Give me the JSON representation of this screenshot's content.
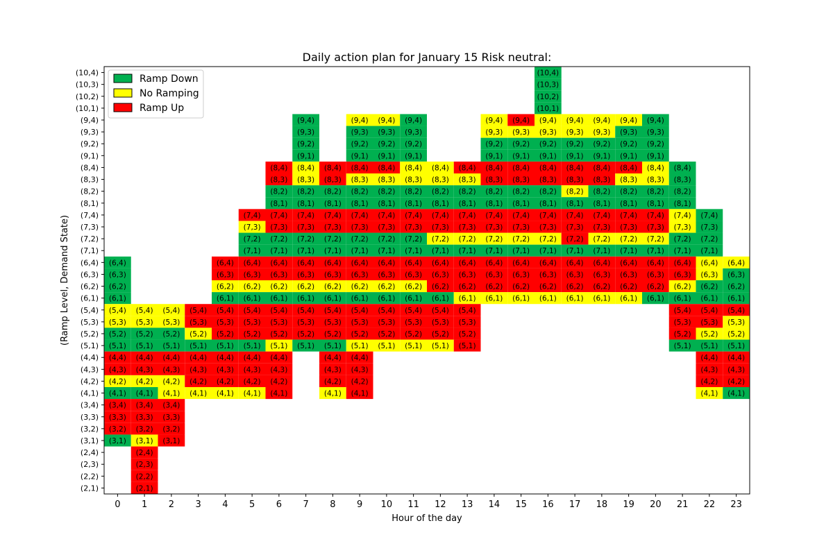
{
  "chart_data": {
    "type": "heatmap",
    "title": "Daily action plan for January 15 Risk neutral:",
    "xlabel": "Hour of the day",
    "ylabel": "(Ramp Level, Demand State)",
    "x_ticks": [
      "0",
      "1",
      "2",
      "3",
      "4",
      "5",
      "6",
      "7",
      "8",
      "9",
      "10",
      "11",
      "12",
      "13",
      "14",
      "15",
      "16",
      "17",
      "18",
      "19",
      "20",
      "21",
      "22",
      "23"
    ],
    "y_categories": [
      "(2,1)",
      "(2,2)",
      "(2,3)",
      "(2,4)",
      "(3,1)",
      "(3,2)",
      "(3,3)",
      "(3,4)",
      "(4,1)",
      "(4,2)",
      "(4,3)",
      "(4,4)",
      "(5,1)",
      "(5,2)",
      "(5,3)",
      "(5,4)",
      "(6,1)",
      "(6,2)",
      "(6,3)",
      "(6,4)",
      "(7,1)",
      "(7,2)",
      "(7,3)",
      "(7,4)",
      "(8,1)",
      "(8,2)",
      "(8,3)",
      "(8,4)",
      "(9,1)",
      "(9,2)",
      "(9,3)",
      "(9,4)",
      "(10,1)",
      "(10,2)",
      "(10,3)",
      "(10,4)"
    ],
    "colors": {
      "D": "#00b050",
      "N": "#ffff00",
      "U": "#ff0000"
    },
    "legend": {
      "position": "top-left",
      "entries": [
        {
          "key": "D",
          "label": "Ramp Down"
        },
        {
          "key": "N",
          "label": "No Ramping"
        },
        {
          "key": "U",
          "label": "Ramp Up"
        }
      ]
    },
    "cell_codes": "D=Ramp Down, N=No Ramping, U=Ramp Up",
    "columns": [
      {
        "hour": 0,
        "cells": {
          "(6,4)": "D",
          "(6,3)": "D",
          "(6,2)": "D",
          "(6,1)": "D",
          "(5,4)": "N",
          "(5,3)": "N",
          "(5,2)": "D",
          "(5,1)": "D",
          "(4,4)": "U",
          "(4,3)": "U",
          "(4,2)": "N",
          "(4,1)": "D",
          "(3,4)": "U",
          "(3,3)": "U",
          "(3,2)": "U",
          "(3,1)": "D"
        }
      },
      {
        "hour": 1,
        "cells": {
          "(5,4)": "N",
          "(5,3)": "N",
          "(5,2)": "D",
          "(5,1)": "D",
          "(4,4)": "U",
          "(4,3)": "U",
          "(4,2)": "N",
          "(4,1)": "D",
          "(3,4)": "U",
          "(3,3)": "U",
          "(3,2)": "U",
          "(3,1)": "N",
          "(2,4)": "U",
          "(2,3)": "U",
          "(2,2)": "U",
          "(2,1)": "U"
        }
      },
      {
        "hour": 2,
        "cells": {
          "(5,4)": "N",
          "(5,3)": "N",
          "(5,2)": "D",
          "(5,1)": "D",
          "(4,4)": "U",
          "(4,3)": "U",
          "(4,2)": "N",
          "(4,1)": "N",
          "(3,4)": "U",
          "(3,3)": "U",
          "(3,2)": "U",
          "(3,1)": "U"
        }
      },
      {
        "hour": 3,
        "cells": {
          "(5,4)": "U",
          "(5,3)": "U",
          "(5,2)": "N",
          "(5,1)": "D",
          "(4,4)": "U",
          "(4,3)": "U",
          "(4,2)": "U",
          "(4,1)": "N"
        }
      },
      {
        "hour": 4,
        "cells": {
          "(6,4)": "U",
          "(6,3)": "U",
          "(6,2)": "N",
          "(6,1)": "D",
          "(5,4)": "U",
          "(5,3)": "U",
          "(5,2)": "U",
          "(5,1)": "D",
          "(4,4)": "U",
          "(4,3)": "U",
          "(4,2)": "U",
          "(4,1)": "N"
        }
      },
      {
        "hour": 5,
        "cells": {
          "(7,4)": "U",
          "(7,3)": "N",
          "(7,2)": "D",
          "(7,1)": "D",
          "(6,4)": "U",
          "(6,3)": "U",
          "(6,2)": "N",
          "(6,1)": "D",
          "(5,4)": "U",
          "(5,3)": "U",
          "(5,2)": "U",
          "(5,1)": "D",
          "(4,4)": "U",
          "(4,3)": "U",
          "(4,2)": "U",
          "(4,1)": "N"
        }
      },
      {
        "hour": 6,
        "cells": {
          "(8,4)": "U",
          "(8,3)": "U",
          "(8,2)": "D",
          "(8,1)": "D",
          "(7,4)": "U",
          "(7,3)": "U",
          "(7,2)": "D",
          "(7,1)": "D",
          "(6,4)": "U",
          "(6,3)": "U",
          "(6,2)": "N",
          "(6,1)": "D",
          "(5,4)": "U",
          "(5,3)": "U",
          "(5,2)": "U",
          "(5,1)": "N",
          "(4,4)": "U",
          "(4,3)": "U",
          "(4,2)": "U",
          "(4,1)": "U"
        }
      },
      {
        "hour": 7,
        "cells": {
          "(9,4)": "D",
          "(9,3)": "D",
          "(9,2)": "D",
          "(9,1)": "D",
          "(8,4)": "N",
          "(8,3)": "N",
          "(8,2)": "D",
          "(8,1)": "D",
          "(7,4)": "U",
          "(7,3)": "U",
          "(7,2)": "D",
          "(7,1)": "D",
          "(6,4)": "U",
          "(6,3)": "U",
          "(6,2)": "N",
          "(6,1)": "D",
          "(5,4)": "U",
          "(5,3)": "U",
          "(5,2)": "U",
          "(5,1)": "D"
        }
      },
      {
        "hour": 8,
        "cells": {
          "(8,4)": "U",
          "(8,3)": "U",
          "(8,2)": "D",
          "(8,1)": "D",
          "(7,4)": "U",
          "(7,3)": "U",
          "(7,2)": "D",
          "(7,1)": "D",
          "(6,4)": "U",
          "(6,3)": "U",
          "(6,2)": "N",
          "(6,1)": "D",
          "(5,4)": "U",
          "(5,3)": "U",
          "(5,2)": "U",
          "(5,1)": "D",
          "(4,4)": "U",
          "(4,3)": "U",
          "(4,2)": "U",
          "(4,1)": "N"
        }
      },
      {
        "hour": 9,
        "cells": {
          "(9,4)": "N",
          "(9,3)": "D",
          "(9,2)": "D",
          "(9,1)": "D",
          "(8,4)": "U",
          "(8,3)": "N",
          "(8,2)": "D",
          "(8,1)": "D",
          "(7,4)": "U",
          "(7,3)": "U",
          "(7,2)": "D",
          "(7,1)": "D",
          "(6,4)": "U",
          "(6,3)": "U",
          "(6,2)": "N",
          "(6,1)": "D",
          "(5,4)": "U",
          "(5,3)": "U",
          "(5,2)": "U",
          "(5,1)": "N",
          "(4,4)": "U",
          "(4,3)": "U",
          "(4,2)": "U",
          "(4,1)": "U"
        }
      },
      {
        "hour": 10,
        "cells": {
          "(9,4)": "N",
          "(9,3)": "D",
          "(9,2)": "D",
          "(9,1)": "D",
          "(8,4)": "U",
          "(8,3)": "N",
          "(8,2)": "D",
          "(8,1)": "D",
          "(7,4)": "U",
          "(7,3)": "U",
          "(7,2)": "D",
          "(7,1)": "D",
          "(6,4)": "U",
          "(6,3)": "U",
          "(6,2)": "N",
          "(6,1)": "D",
          "(5,4)": "U",
          "(5,3)": "U",
          "(5,2)": "U",
          "(5,1)": "N"
        }
      },
      {
        "hour": 11,
        "cells": {
          "(9,4)": "D",
          "(9,3)": "D",
          "(9,2)": "D",
          "(9,1)": "D",
          "(8,4)": "N",
          "(8,3)": "N",
          "(8,2)": "D",
          "(8,1)": "D",
          "(7,4)": "U",
          "(7,3)": "U",
          "(7,2)": "D",
          "(7,1)": "D",
          "(6,4)": "U",
          "(6,3)": "U",
          "(6,2)": "N",
          "(6,1)": "D",
          "(5,4)": "U",
          "(5,3)": "U",
          "(5,2)": "U",
          "(5,1)": "N"
        }
      },
      {
        "hour": 12,
        "cells": {
          "(8,4)": "N",
          "(8,3)": "N",
          "(8,2)": "D",
          "(8,1)": "D",
          "(7,4)": "U",
          "(7,3)": "U",
          "(7,2)": "N",
          "(7,1)": "D",
          "(6,4)": "U",
          "(6,3)": "U",
          "(6,2)": "U",
          "(6,1)": "D",
          "(5,4)": "U",
          "(5,3)": "U",
          "(5,2)": "U",
          "(5,1)": "N"
        }
      },
      {
        "hour": 13,
        "cells": {
          "(8,4)": "U",
          "(8,3)": "N",
          "(8,2)": "D",
          "(8,1)": "D",
          "(7,4)": "U",
          "(7,3)": "U",
          "(7,2)": "N",
          "(7,1)": "D",
          "(6,4)": "U",
          "(6,3)": "U",
          "(6,2)": "U",
          "(6,1)": "N",
          "(5,4)": "U",
          "(5,3)": "U",
          "(5,2)": "U",
          "(5,1)": "U"
        }
      },
      {
        "hour": 14,
        "cells": {
          "(9,4)": "N",
          "(9,3)": "N",
          "(9,2)": "D",
          "(9,1)": "D",
          "(8,4)": "U",
          "(8,3)": "U",
          "(8,2)": "D",
          "(8,1)": "D",
          "(7,4)": "U",
          "(7,3)": "U",
          "(7,2)": "N",
          "(7,1)": "D",
          "(6,4)": "U",
          "(6,3)": "U",
          "(6,2)": "U",
          "(6,1)": "N"
        }
      },
      {
        "hour": 15,
        "cells": {
          "(9,4)": "U",
          "(9,3)": "N",
          "(9,2)": "D",
          "(9,1)": "D",
          "(8,4)": "U",
          "(8,3)": "U",
          "(8,2)": "D",
          "(8,1)": "D",
          "(7,4)": "U",
          "(7,3)": "U",
          "(7,2)": "N",
          "(7,1)": "D",
          "(6,4)": "U",
          "(6,3)": "U",
          "(6,2)": "U",
          "(6,1)": "N"
        }
      },
      {
        "hour": 16,
        "cells": {
          "(10,4)": "D",
          "(10,3)": "D",
          "(10,2)": "D",
          "(10,1)": "D",
          "(9,4)": "N",
          "(9,3)": "N",
          "(9,2)": "D",
          "(9,1)": "D",
          "(8,4)": "U",
          "(8,3)": "U",
          "(8,2)": "D",
          "(8,1)": "D",
          "(7,4)": "U",
          "(7,3)": "U",
          "(7,2)": "N",
          "(7,1)": "D",
          "(6,4)": "U",
          "(6,3)": "U",
          "(6,2)": "U",
          "(6,1)": "N"
        }
      },
      {
        "hour": 17,
        "cells": {
          "(9,4)": "N",
          "(9,3)": "N",
          "(9,2)": "D",
          "(9,1)": "D",
          "(8,4)": "U",
          "(8,3)": "U",
          "(8,2)": "N",
          "(8,1)": "D",
          "(7,4)": "U",
          "(7,3)": "U",
          "(7,2)": "U",
          "(7,1)": "D",
          "(6,4)": "U",
          "(6,3)": "U",
          "(6,2)": "U",
          "(6,1)": "N"
        }
      },
      {
        "hour": 18,
        "cells": {
          "(9,4)": "N",
          "(9,3)": "N",
          "(9,2)": "D",
          "(9,1)": "D",
          "(8,4)": "U",
          "(8,3)": "U",
          "(8,2)": "D",
          "(8,1)": "D",
          "(7,4)": "U",
          "(7,3)": "U",
          "(7,2)": "N",
          "(7,1)": "D",
          "(6,4)": "U",
          "(6,3)": "U",
          "(6,2)": "U",
          "(6,1)": "N"
        }
      },
      {
        "hour": 19,
        "cells": {
          "(9,4)": "N",
          "(9,3)": "D",
          "(9,2)": "D",
          "(9,1)": "D",
          "(8,4)": "U",
          "(8,3)": "N",
          "(8,2)": "D",
          "(8,1)": "D",
          "(7,4)": "U",
          "(7,3)": "U",
          "(7,2)": "N",
          "(7,1)": "D",
          "(6,4)": "U",
          "(6,3)": "U",
          "(6,2)": "U",
          "(6,1)": "N"
        }
      },
      {
        "hour": 20,
        "cells": {
          "(9,4)": "D",
          "(9,3)": "D",
          "(9,2)": "D",
          "(9,1)": "D",
          "(8,4)": "N",
          "(8,3)": "N",
          "(8,2)": "D",
          "(8,1)": "D",
          "(7,4)": "U",
          "(7,3)": "U",
          "(7,2)": "N",
          "(7,1)": "D",
          "(6,4)": "U",
          "(6,3)": "U",
          "(6,2)": "U",
          "(6,1)": "D"
        }
      },
      {
        "hour": 21,
        "cells": {
          "(8,4)": "D",
          "(8,3)": "D",
          "(8,2)": "D",
          "(8,1)": "D",
          "(7,4)": "N",
          "(7,3)": "N",
          "(7,2)": "D",
          "(7,1)": "D",
          "(6,4)": "U",
          "(6,3)": "U",
          "(6,2)": "N",
          "(6,1)": "D",
          "(5,4)": "U",
          "(5,3)": "U",
          "(5,2)": "U",
          "(5,1)": "D"
        }
      },
      {
        "hour": 22,
        "cells": {
          "(7,4)": "D",
          "(7,3)": "D",
          "(7,2)": "D",
          "(7,1)": "D",
          "(6,4)": "N",
          "(6,3)": "N",
          "(6,2)": "D",
          "(6,1)": "D",
          "(5,4)": "U",
          "(5,3)": "U",
          "(5,2)": "N",
          "(5,1)": "D",
          "(4,4)": "U",
          "(4,3)": "U",
          "(4,2)": "U",
          "(4,1)": "N"
        }
      },
      {
        "hour": 23,
        "cells": {
          "(6,4)": "N",
          "(6,3)": "D",
          "(6,2)": "D",
          "(6,1)": "D",
          "(5,4)": "U",
          "(5,3)": "N",
          "(5,2)": "N",
          "(5,1)": "D",
          "(4,4)": "U",
          "(4,3)": "U",
          "(4,2)": "U",
          "(4,1)": "D"
        }
      }
    ]
  }
}
